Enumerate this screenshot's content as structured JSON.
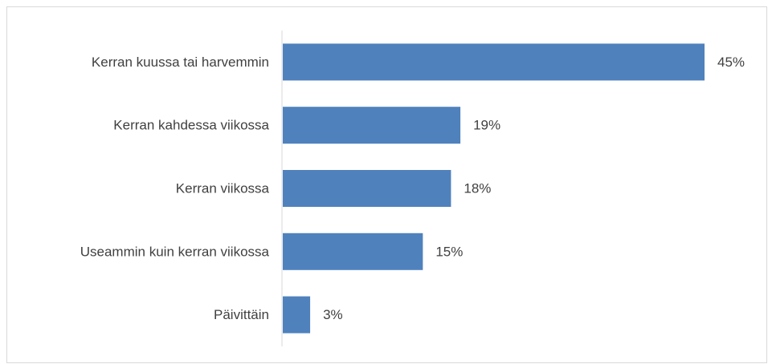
{
  "chart_data": {
    "type": "bar",
    "orientation": "horizontal",
    "categories": [
      "Kerran kuussa tai harvemmin",
      "Kerran kahdessa viikossa",
      "Kerran viikossa",
      "Useammin kuin kerran viikossa",
      "Päivittäin"
    ],
    "values": [
      45,
      19,
      18,
      15,
      3
    ],
    "value_labels": [
      "45%",
      "19%",
      "18%",
      "15%",
      "3%"
    ],
    "unit": "%",
    "title": "",
    "xlabel": "",
    "ylabel": "",
    "xlim": [
      0,
      45
    ],
    "grid": false,
    "legend": "none",
    "bar_color": "#4f81bd",
    "axis_color": "#d9d9d9",
    "text_color": "#404040"
  }
}
